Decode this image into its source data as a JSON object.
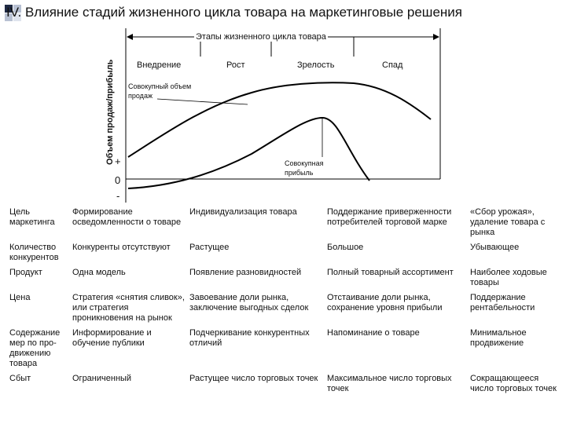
{
  "slide": {
    "title": "IV. Влияние стадий жизненного цикла товара на маркетинговые решения"
  },
  "diagram": {
    "y_axis_label": "Объем продаж/прибыль",
    "stages_title": "Этапы жизненного цикла товара",
    "stages": [
      "Внедрение",
      "Рост",
      "Зрелость",
      "Спад"
    ],
    "sales_label": "Совокупный объем продаж",
    "profit_label": "Совокупная прибыль",
    "plus": "+",
    "zero": "0",
    "minus": "-"
  },
  "table": {
    "rows": [
      {
        "label": "Цель маркетинга",
        "cells": [
          "Формирование осведомленности о товаре",
          "Индивидуализация товара",
          "Поддержание приверженности потребителей торговой марке",
          "«Сбор урожая», удаление товара с рынка"
        ]
      },
      {
        "label": "Количество конкурентов",
        "cells": [
          "Конкуренты отсутствуют",
          "Растущее",
          "Большое",
          "Убывающее"
        ]
      },
      {
        "label": "Продукт",
        "cells": [
          "Одна модель",
          "Появление разновидностей",
          "Полный товарный ассортимент",
          "Наиболее ходовые товары"
        ]
      },
      {
        "label": "Цена",
        "cells": [
          "Стратегия «снятия сливок», или стратегия проникновения на рынок",
          "Завоевание доли рынка, заключение выгодных сделок",
          "Отстаивание доли рынка, сохранение уровня прибыли",
          "Поддержание рентабельности"
        ]
      },
      {
        "label": "Содержание мер по про-движению товара",
        "cells": [
          "Информирование и обучение публики",
          "Подчеркивание конкурентных отличий",
          "Напоминание о товаре",
          "Минимальное продвижение"
        ]
      },
      {
        "label": "Сбыт",
        "cells": [
          "Ограниченный",
          "Растущее число торговых точек",
          "Максимальное число торговых точек",
          "Сокращающееся число торговых точек"
        ]
      }
    ]
  }
}
